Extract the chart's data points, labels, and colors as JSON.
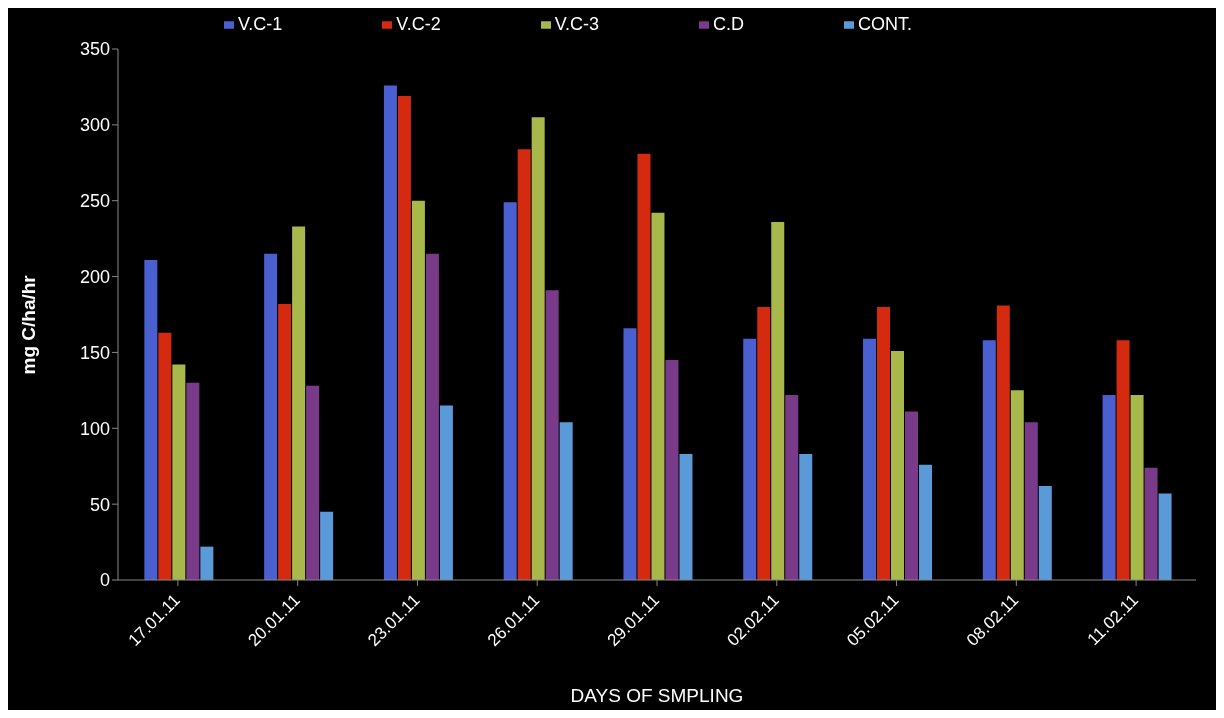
{
  "chart_data": {
    "type": "bar",
    "xlabel": "DAYS OF  SMPLING",
    "ylabel": "mg C/ha/hr",
    "categories": [
      "17.01.11",
      "20.01.11",
      "23.01.11",
      "26.01.11",
      "29.01.11",
      "02.02.11",
      "05.02.11",
      "08.02.11",
      "11.02.11"
    ],
    "series": [
      {
        "name": "V.C-1",
        "color": "#4a5fd0",
        "values": [
          211,
          215,
          326,
          249,
          166,
          159,
          159,
          158,
          122
        ]
      },
      {
        "name": "V.C-2",
        "color": "#d42a10",
        "values": [
          163,
          182,
          319,
          284,
          281,
          180,
          180,
          181,
          158
        ]
      },
      {
        "name": "V.C-3",
        "color": "#a8b84a",
        "values": [
          142,
          233,
          250,
          305,
          242,
          236,
          151,
          125,
          122
        ]
      },
      {
        "name": "C.D",
        "color": "#7a3a8a",
        "values": [
          130,
          128,
          215,
          191,
          145,
          122,
          111,
          104,
          74
        ]
      },
      {
        "name": "CONT.",
        "color": "#5a9ad8",
        "values": [
          22,
          45,
          115,
          104,
          83,
          83,
          76,
          62,
          57
        ]
      }
    ],
    "ylim": [
      0,
      350
    ],
    "yticks": [
      0,
      50,
      100,
      150,
      200,
      250,
      300,
      350
    ],
    "grid": false,
    "legend": "top"
  }
}
